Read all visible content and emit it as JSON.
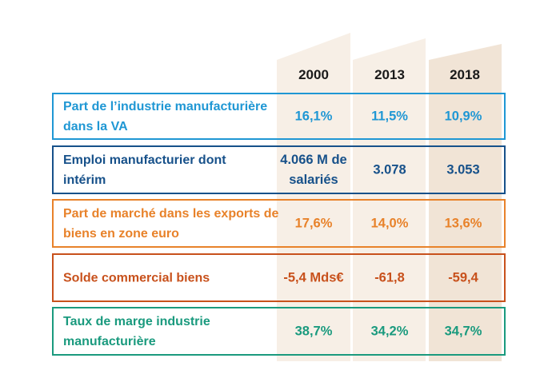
{
  "columns": [
    "2000",
    "2013",
    "2018"
  ],
  "colors": {
    "col_bg_light": "#f7efe6",
    "col_bg_dark": "#f1e4d6",
    "blue_light": "#1f97d4",
    "blue_dark": "#17518a",
    "orange": "#e8822a",
    "rust": "#c8511c",
    "green": "#1a9a7e"
  },
  "rows": [
    {
      "label": "Part de l’industrie manufacturière dans la VA",
      "values": [
        "16,1%",
        "11,5%",
        "10,9%"
      ],
      "color": "#1f97d4"
    },
    {
      "label": "Emploi manufacturier dont intérim",
      "values": [
        "4.066 M de salariés",
        "3.078",
        "3.053"
      ],
      "color": "#17518a"
    },
    {
      "label": "Part de marché dans les exports de biens en zone euro",
      "values": [
        "17,6%",
        "14,0%",
        "13,6%"
      ],
      "color": "#e8822a"
    },
    {
      "label": "Solde commercial biens",
      "values": [
        "-5,4 Mds€",
        "-61,8",
        "-59,4"
      ],
      "color": "#c8511c"
    },
    {
      "label": "Taux de marge industrie manufacturière",
      "values": [
        "38,7%",
        "34,2%",
        "34,7%"
      ],
      "color": "#1a9a7e"
    }
  ]
}
